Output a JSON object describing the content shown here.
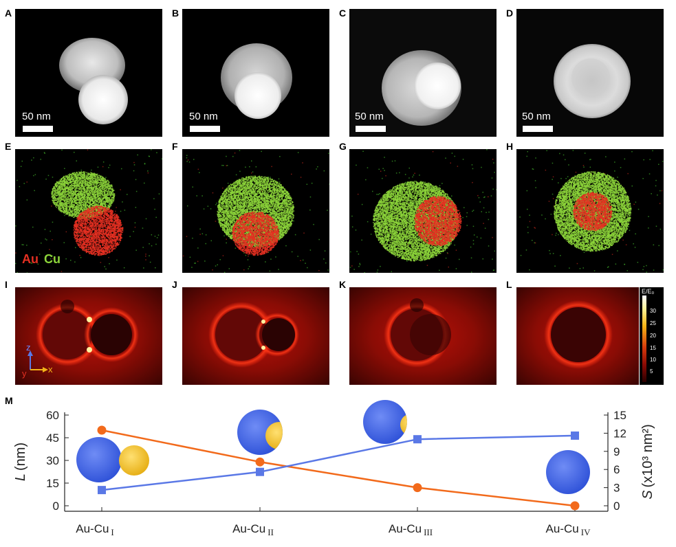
{
  "panels": {
    "stem": [
      {
        "label": "A",
        "scale": "50 nm"
      },
      {
        "label": "B",
        "scale": "50 nm"
      },
      {
        "label": "C",
        "scale": "50 nm"
      },
      {
        "label": "D",
        "scale": "50 nm"
      }
    ],
    "eds": [
      {
        "label": "E"
      },
      {
        "label": "F"
      },
      {
        "label": "G"
      },
      {
        "label": "H"
      }
    ],
    "eds_legend": {
      "au": "Au",
      "cu": "Cu"
    },
    "field": [
      {
        "label": "I"
      },
      {
        "label": "J"
      },
      {
        "label": "K"
      },
      {
        "label": "L"
      }
    ],
    "axes_labels": {
      "z": "z",
      "x": "x",
      "y": "y"
    },
    "colorbar": {
      "title": "E/E₀",
      "ticks": [
        "30",
        "25",
        "20",
        "15",
        "10",
        "5"
      ]
    },
    "plot_label": "M"
  },
  "chart_data": {
    "type": "line",
    "categories_base": [
      "Au-Cu",
      "Au-Cu",
      "Au-Cu",
      "Au-Cu"
    ],
    "categories_sub": [
      "I",
      "II",
      "III",
      "IV"
    ],
    "left_axis": {
      "label_symbol": "L",
      "label_unit": "(nm)",
      "ylim": [
        0,
        60
      ],
      "ticks": [
        "0",
        "15",
        "30",
        "45",
        "60"
      ]
    },
    "right_axis": {
      "label_symbol": "S",
      "label_unit": "(x10³ nm²)",
      "ylim": [
        0,
        15
      ],
      "ticks": [
        "0",
        "3",
        "6",
        "9",
        "12",
        "15"
      ]
    },
    "series": [
      {
        "axis": "left",
        "color": "#f26a1b",
        "marker": "circle",
        "values": [
          50,
          29,
          12,
          0
        ]
      },
      {
        "axis": "right",
        "color": "#5a78e6",
        "marker": "square",
        "values": [
          2.6,
          5.6,
          11.0,
          11.6
        ]
      }
    ],
    "grid": false
  },
  "colors": {
    "au": "#e53022",
    "cu": "#8cd43a",
    "orange": "#f26a1b",
    "blue": "#5a78e6",
    "sphere_blue": "#3b62e8",
    "sphere_gold": "#f1c232"
  }
}
